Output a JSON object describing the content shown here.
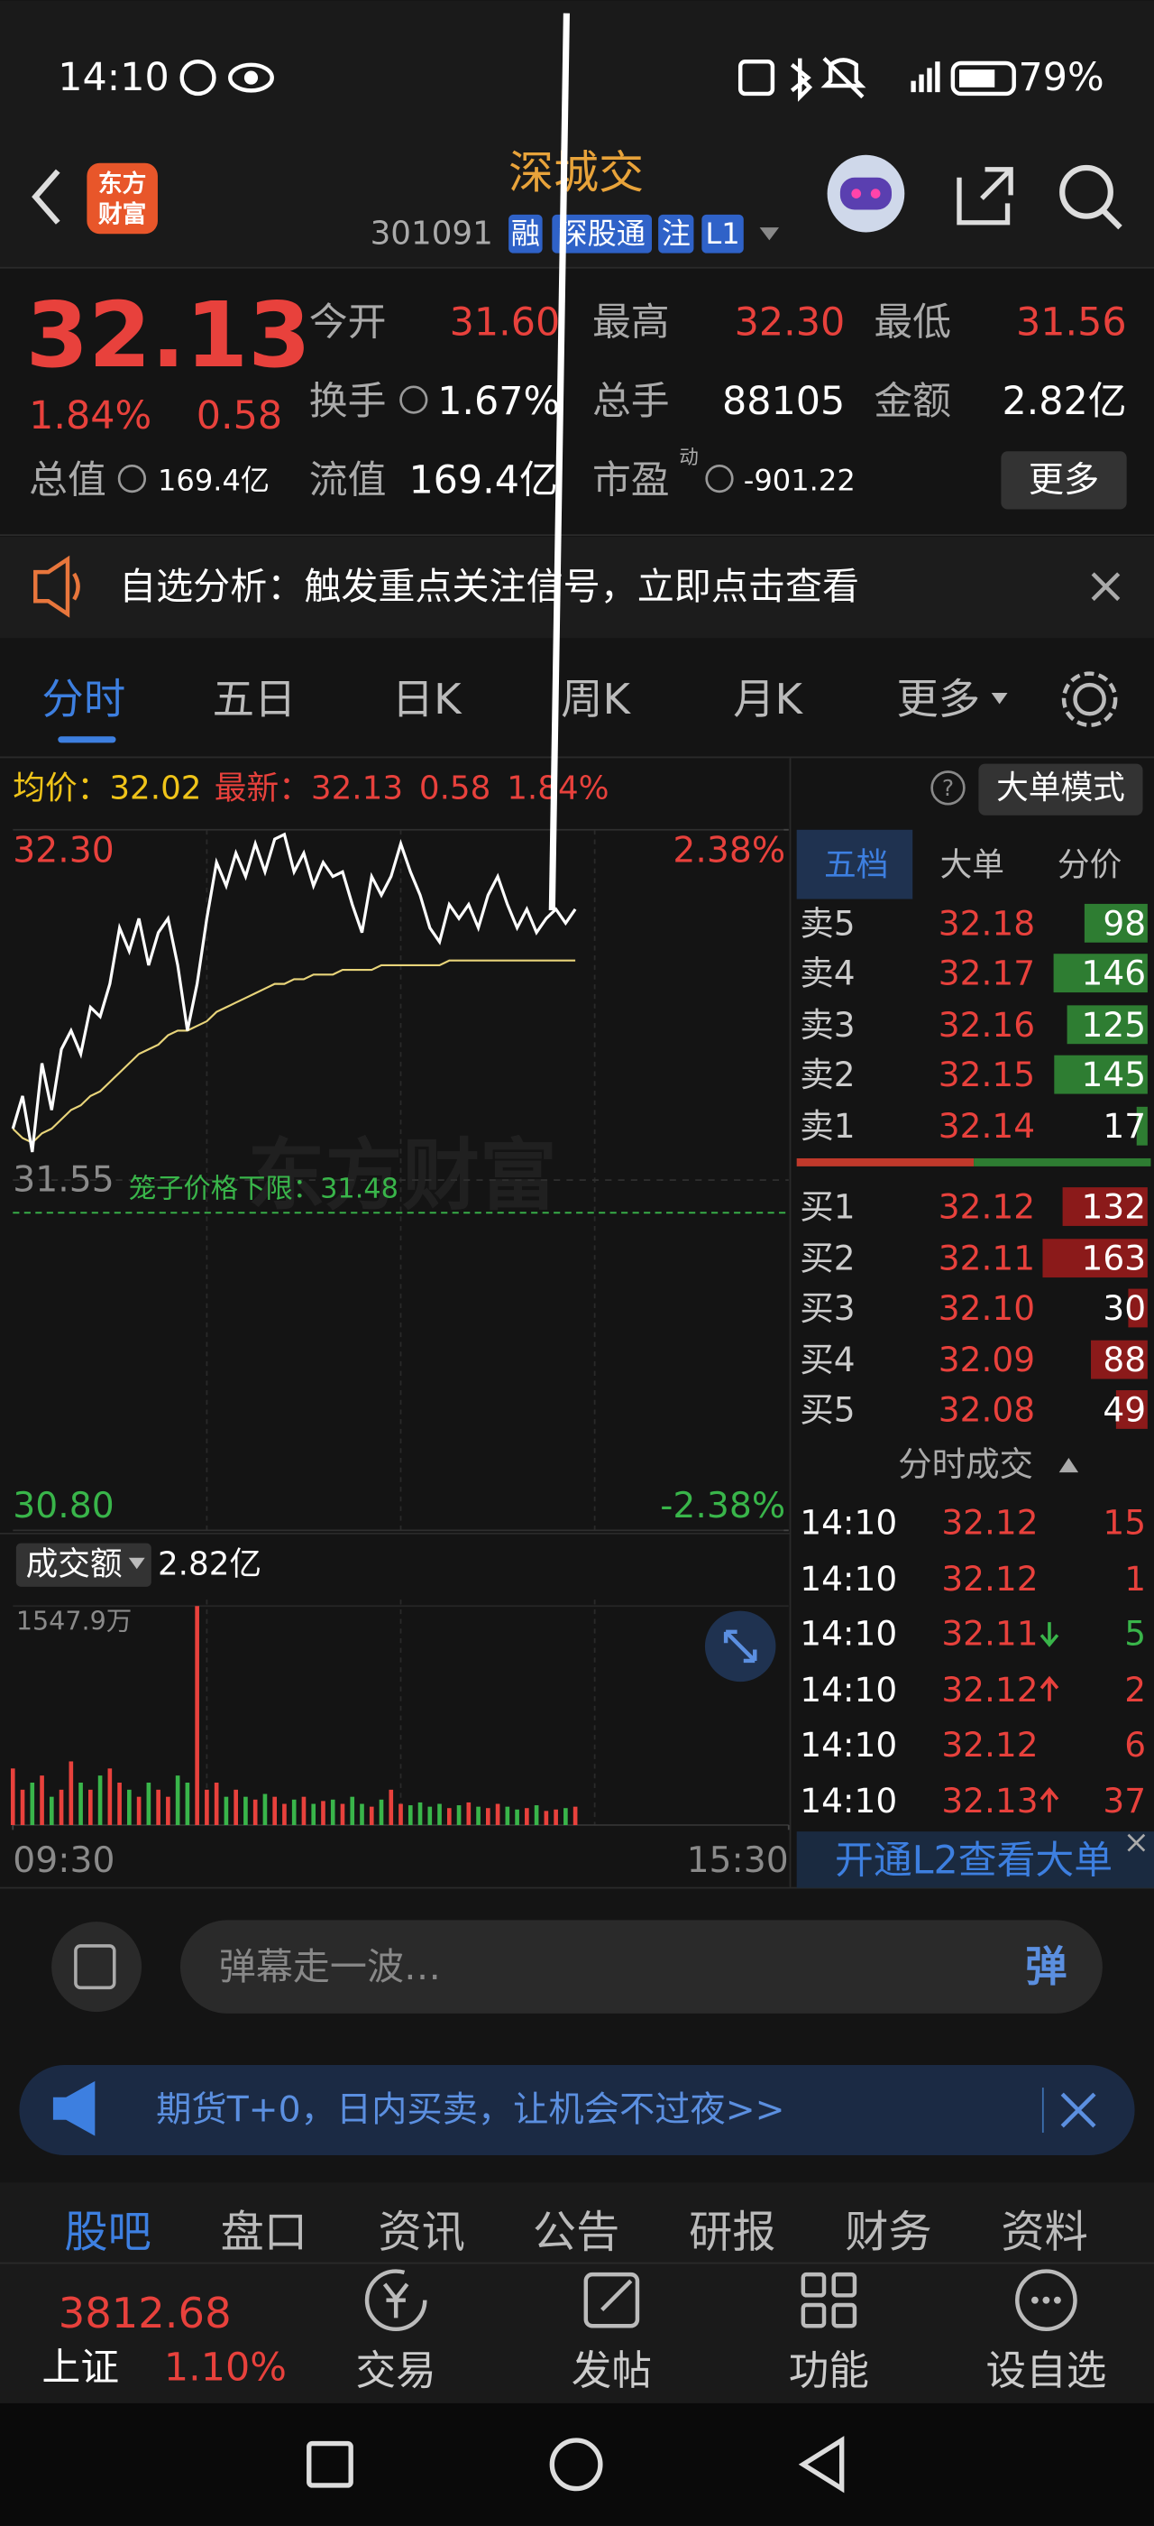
{
  "status_bar": {
    "time": "14:10",
    "battery": "79%"
  },
  "header": {
    "logo": [
      "东方",
      "财富"
    ],
    "title": "深城交",
    "code": "301091",
    "tags": [
      "融",
      "深股通",
      "注",
      "L1"
    ]
  },
  "quote": {
    "price": "32.13",
    "change_pct": "1.84%",
    "change": "0.58",
    "color": "#e8413c",
    "fields": [
      {
        "label": "今开",
        "value": "31.60",
        "color": "#e8413c"
      },
      {
        "label": "最高",
        "value": "32.30",
        "color": "#e8413c"
      },
      {
        "label": "最低",
        "value": "31.56",
        "color": "#e8413c"
      },
      {
        "label": "换手",
        "value": "1.67%",
        "color": "#ffffff"
      },
      {
        "label": "总手",
        "value": "88105",
        "color": "#ffffff"
      },
      {
        "label": "金额",
        "value": "2.82亿",
        "color": "#ffffff"
      },
      {
        "label": "总值",
        "value": "169.4亿",
        "color": "#ffffff"
      },
      {
        "label": "流值",
        "value": "169.4亿",
        "color": "#ffffff"
      },
      {
        "label": "市盈",
        "superscript": "动",
        "value": "-901.22",
        "color": "#ffffff"
      }
    ],
    "more": "更多"
  },
  "banner": {
    "text": "自选分析：触发重点关注信号，立即点击查看"
  },
  "chart_tabs": [
    "分时",
    "五日",
    "日K",
    "周K",
    "月K",
    "更多"
  ],
  "info": {
    "avg_label": "均价：",
    "avg": "32.02",
    "last_label": "最新：",
    "last": "32.13",
    "change": "0.58",
    "change_pct": "1.84%",
    "mode_button": "大单模式"
  },
  "watermark": "东方财富",
  "chart_data": [
    {
      "type": "line",
      "x": [
        0,
        3,
        6,
        9,
        12,
        15,
        18,
        21,
        24,
        27,
        30,
        33,
        36,
        39,
        42,
        45,
        48,
        51,
        54,
        57,
        60,
        63,
        66,
        69,
        72,
        75,
        78,
        81,
        84,
        87,
        90,
        93,
        96,
        99,
        102,
        105,
        108,
        111,
        114,
        117,
        120,
        123,
        126,
        129,
        132,
        135,
        138,
        141,
        144,
        147,
        150,
        153,
        156,
        159,
        162,
        165,
        168,
        171,
        174
      ],
      "xlim": [
        0,
        240
      ],
      "ylim": [
        30.8,
        32.3
      ],
      "yticks": [
        {
          "value": 32.3,
          "label": "32.30"
        },
        31.55,
        {
          "value": 30.8,
          "label": "30.80"
        }
      ],
      "ytick_colors": [
        "#e8413c",
        "#8a8a8a",
        "#39b54a"
      ],
      "y2lim": [
        -2.38,
        2.38
      ],
      "y2ticks": [
        {
          "value": 2.38,
          "label": "2.38%"
        },
        {
          "value": -2.38,
          "label": "-2.38%"
        }
      ],
      "y2tick_colors": [
        "#e8413c",
        "#39b54a"
      ],
      "series": [
        {
          "color": "#ffffff",
          "values": [
            31.66,
            31.73,
            31.61,
            31.8,
            31.7,
            31.83,
            31.87,
            31.82,
            31.92,
            31.9,
            31.97,
            32.09,
            32.04,
            32.11,
            32.01,
            32.08,
            32.11,
            32.01,
            31.87,
            31.97,
            32.11,
            32.23,
            32.18,
            32.25,
            32.2,
            32.27,
            32.21,
            32.28,
            32.29,
            32.21,
            32.25,
            32.18,
            32.23,
            32.2,
            32.21,
            32.14,
            32.08,
            32.2,
            32.16,
            32.2,
            32.27,
            32.21,
            32.16,
            32.09,
            32.06,
            32.14,
            32.11,
            32.14,
            32.09,
            32.16,
            32.2,
            32.14,
            32.09,
            32.13,
            32.08,
            32.11,
            32.13,
            32.1,
            32.13
          ]
        },
        {
          "color": "#e8d47a",
          "values": [
            31.66,
            31.64,
            31.63,
            31.65,
            31.66,
            31.68,
            31.7,
            31.71,
            31.73,
            31.74,
            31.76,
            31.78,
            31.8,
            31.82,
            31.83,
            31.84,
            31.86,
            31.87,
            31.87,
            31.88,
            31.89,
            31.91,
            31.92,
            31.93,
            31.94,
            31.95,
            31.96,
            31.97,
            31.97,
            31.98,
            31.98,
            31.99,
            31.99,
            31.99,
            32.0,
            32.0,
            32.0,
            32.0,
            32.01,
            32.01,
            32.01,
            32.01,
            32.01,
            32.01,
            32.01,
            32.02,
            32.02,
            32.02,
            32.02,
            32.02,
            32.02,
            32.02,
            32.02,
            32.02,
            32.02,
            32.02,
            32.02,
            32.02,
            32.02
          ]
        }
      ],
      "annotation": {
        "label": "笼子价格下限：",
        "value": 31.48,
        "color": "#39b54a"
      }
    },
    {
      "type": "bar",
      "selector": "成交额",
      "total": "2.82亿",
      "x": [
        0,
        3,
        6,
        9,
        12,
        15,
        18,
        21,
        24,
        27,
        30,
        33,
        36,
        39,
        42,
        45,
        48,
        51,
        54,
        57,
        60,
        63,
        66,
        69,
        72,
        75,
        78,
        81,
        84,
        87,
        90,
        93,
        96,
        99,
        102,
        105,
        108,
        111,
        114,
        117,
        120,
        123,
        126,
        129,
        132,
        135,
        138,
        141,
        144,
        147,
        150,
        153,
        156,
        159,
        162,
        165,
        168,
        171,
        174
      ],
      "xlim": [
        0,
        240
      ],
      "xticks": [
        {
          "value": 0,
          "label": "09:30"
        },
        {
          "value": 240,
          "label": "15:30"
        }
      ],
      "ylim": [
        0,
        1547.9
      ],
      "yticks": [
        {
          "value": 1547.9,
          "label": "1547.9万"
        }
      ],
      "values": [
        400,
        250,
        300,
        350,
        200,
        250,
        450,
        300,
        250,
        350,
        400,
        300,
        250,
        200,
        300,
        250,
        200,
        350,
        300,
        1547.9,
        250,
        300,
        200,
        250,
        200,
        180,
        220,
        200,
        150,
        180,
        200,
        150,
        170,
        180,
        150,
        200,
        150,
        130,
        180,
        250,
        150,
        140,
        160,
        130,
        150,
        120,
        140,
        160,
        130,
        120,
        150,
        130,
        110,
        120,
        140,
        100,
        110,
        120,
        130
      ],
      "colors": [
        "#e8413c",
        "#e8413c",
        "#39b54a",
        "#e8413c",
        "#39b54a",
        "#e8413c",
        "#e8413c",
        "#39b54a",
        "#e8413c",
        "#39b54a",
        "#e8413c",
        "#e8413c",
        "#39b54a",
        "#e8413c",
        "#39b54a",
        "#e8413c",
        "#e8413c",
        "#39b54a",
        "#39b54a",
        "#e8413c",
        "#e8413c",
        "#e8413c",
        "#39b54a",
        "#e8413c",
        "#39b54a",
        "#e8413c",
        "#39b54a",
        "#e8413c",
        "#e8413c",
        "#39b54a",
        "#e8413c",
        "#39b54a",
        "#e8413c",
        "#39b54a",
        "#e8413c",
        "#39b54a",
        "#39b54a",
        "#e8413c",
        "#39b54a",
        "#e8413c",
        "#e8413c",
        "#39b54a",
        "#39b54a",
        "#39b54a",
        "#39b54a",
        "#e8413c",
        "#39b54a",
        "#e8413c",
        "#39b54a",
        "#e8413c",
        "#e8413c",
        "#39b54a",
        "#39b54a",
        "#e8413c",
        "#39b54a",
        "#e8413c",
        "#e8413c",
        "#39b54a",
        "#e8413c"
      ]
    }
  ],
  "order_book": {
    "tabs": [
      "五档",
      "大单",
      "分价"
    ],
    "asks": [
      {
        "label": "卖5",
        "price": "32.18",
        "volume": 98
      },
      {
        "label": "卖4",
        "price": "32.17",
        "volume": 146
      },
      {
        "label": "卖3",
        "price": "32.16",
        "volume": 125
      },
      {
        "label": "卖2",
        "price": "32.15",
        "volume": 145
      },
      {
        "label": "卖1",
        "price": "32.14",
        "volume": 17
      }
    ],
    "bids": [
      {
        "label": "买1",
        "price": "32.12",
        "volume": 132
      },
      {
        "label": "买2",
        "price": "32.11",
        "volume": 163
      },
      {
        "label": "买3",
        "price": "32.10",
        "volume": 30
      },
      {
        "label": "买4",
        "price": "32.09",
        "volume": 88
      },
      {
        "label": "买5",
        "price": "32.08",
        "volume": 49
      }
    ]
  },
  "trades": {
    "title": "分时成交",
    "rows": [
      {
        "time": "14:10",
        "price": "32.12",
        "volume": 15,
        "volume_color": "#e8413c"
      },
      {
        "time": "14:10",
        "price": "32.12",
        "volume": 1,
        "volume_color": "#e8413c"
      },
      {
        "time": "14:10",
        "price": "32.11",
        "direction": "down",
        "volume": 5,
        "volume_color": "#39b54a"
      },
      {
        "time": "14:10",
        "price": "32.12",
        "direction": "up",
        "volume": 2,
        "volume_color": "#e8413c"
      },
      {
        "time": "14:10",
        "price": "32.12",
        "volume": 6,
        "volume_color": "#e8413c"
      },
      {
        "time": "14:10",
        "price": "32.13",
        "direction": "up",
        "volume": 37,
        "volume_color": "#e8413c"
      }
    ],
    "l2_link": "开通L2查看大单"
  },
  "comment": {
    "placeholder": "弹幕走一波…",
    "button": "弹"
  },
  "ad": {
    "text": "期货T+0，日内买卖，让机会不过夜>>"
  },
  "sub_tabs": [
    "股吧",
    "盘口",
    "资讯",
    "公告",
    "研报",
    "财务",
    "资料"
  ],
  "index": {
    "value": "3812.68",
    "name": "上证",
    "change": "1.10%"
  },
  "nav": [
    "交易",
    "发帖",
    "功能",
    "设自选"
  ]
}
